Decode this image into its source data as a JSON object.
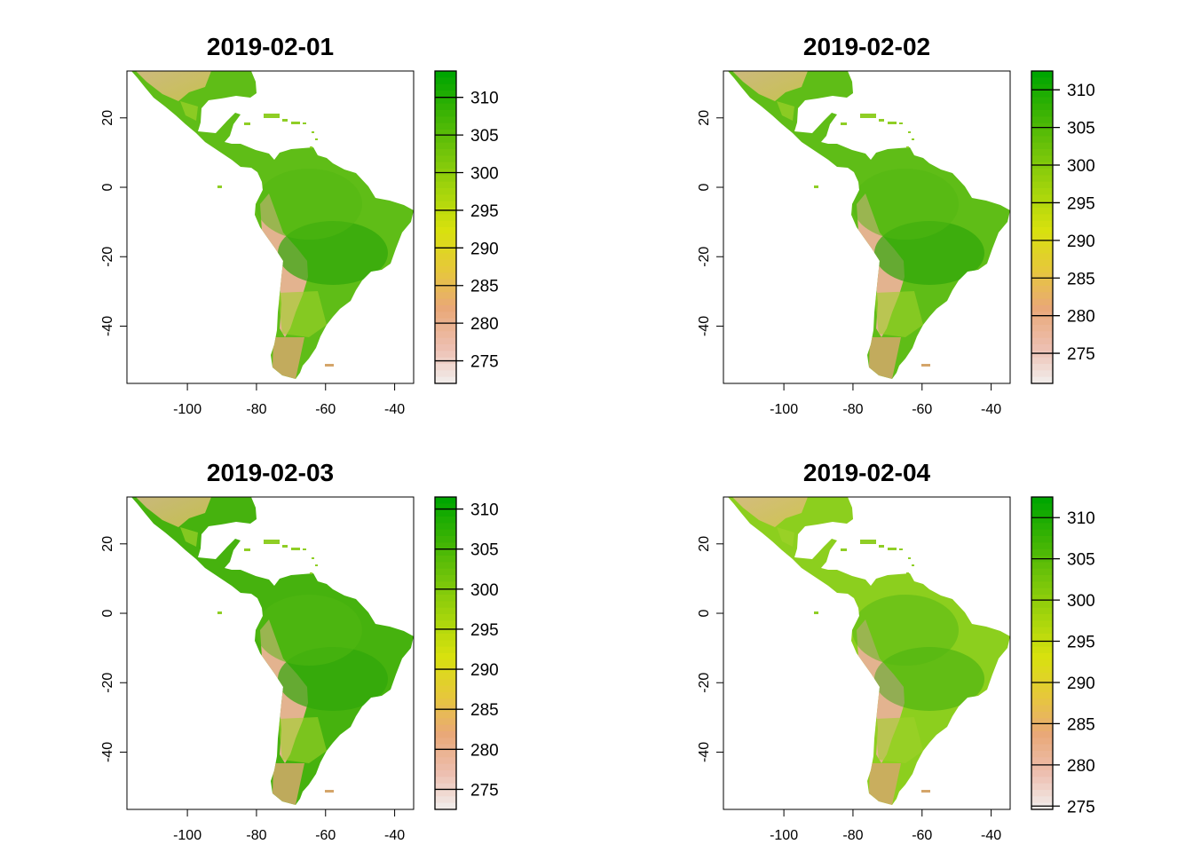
{
  "figure": {
    "panels": [
      {
        "title": "2019-02-01",
        "legend_ticks": [
          310,
          305,
          300,
          295,
          290,
          285,
          280,
          275
        ],
        "legend_range": [
          272,
          313.5
        ],
        "theme": "mid"
      },
      {
        "title": "2019-02-02",
        "legend_ticks": [
          310,
          305,
          300,
          295,
          290,
          285,
          280,
          275
        ],
        "legend_range": [
          271,
          312.5
        ],
        "theme": "mid"
      },
      {
        "title": "2019-02-03",
        "legend_ticks": [
          310,
          305,
          300,
          295,
          290,
          285,
          280,
          275
        ],
        "legend_range": [
          272.5,
          311.5
        ],
        "theme": "dark"
      },
      {
        "title": "2019-02-04",
        "legend_ticks": [
          310,
          305,
          300,
          295,
          290,
          285,
          280,
          275
        ],
        "legend_range": [
          274.6,
          312.5
        ],
        "theme": "light"
      }
    ],
    "x_axis": {
      "ticks": [
        -100,
        -80,
        -60,
        -40
      ],
      "range": [
        -117.5,
        -34.5
      ]
    },
    "y_axis": {
      "ticks": [
        20,
        0,
        -20,
        -40
      ],
      "range": [
        -56.5,
        33.5
      ]
    },
    "colors": {
      "palette": [
        "#f2f2f2",
        "#edbfb0",
        "#e9a878",
        "#e6c83a",
        "#d8e10e",
        "#a5d50c",
        "#72c40a",
        "#3bb304",
        "#00a600"
      ],
      "land_mid": "#5fbd17",
      "land_dark": "#46b20e",
      "land_light": "#8ccf1e",
      "highland": "#e3b38f",
      "frame": "#000000"
    }
  }
}
